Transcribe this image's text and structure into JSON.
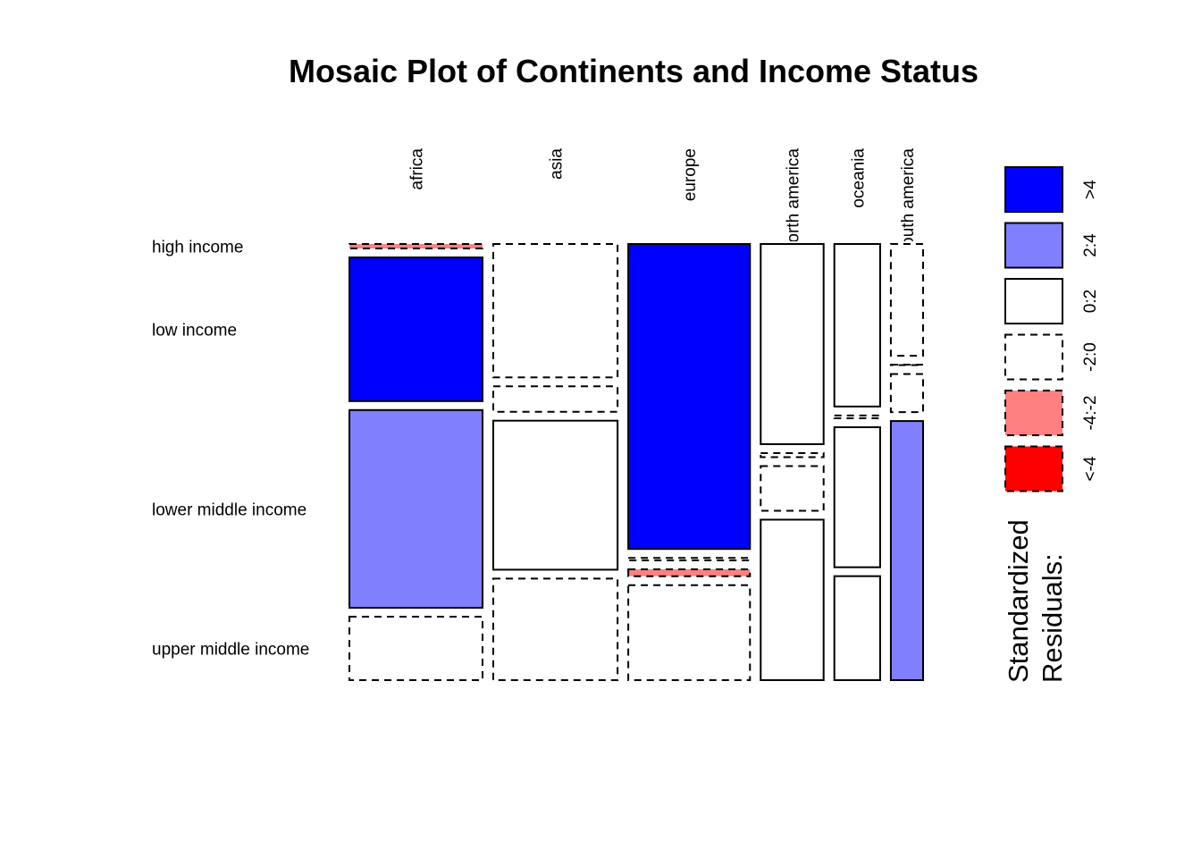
{
  "chart_data": {
    "type": "mosaic",
    "title": "Mosaic Plot of Continents and Income Status",
    "columns": [
      "africa",
      "asia",
      "europe",
      "north america",
      "oceania",
      "south america"
    ],
    "rows": [
      "high income",
      "low income",
      "lower middle income",
      "upper middle income"
    ],
    "proportions": [
      [
        0.011,
        0.351,
        0.483,
        0.155
      ],
      [
        0.326,
        0.062,
        0.364,
        0.248
      ],
      [
        0.745,
        0.006,
        0.017,
        0.232
      ],
      [
        0.489,
        0.01,
        0.109,
        0.392
      ],
      [
        0.397,
        0.007,
        0.342,
        0.254
      ],
      [
        0.273,
        0.001,
        0.093,
        0.633
      ]
    ],
    "column_widths": [
      0.256,
      0.239,
      0.234,
      0.121,
      0.088,
      0.062
    ],
    "residual_class": [
      [
        "neg2to4",
        "pos4",
        "pos2to4",
        "neg0to2"
      ],
      [
        "neg0to2",
        "neg0to2",
        "pos0to2",
        "neg0to2"
      ],
      [
        "pos4",
        "neg0to2",
        "neg2to4",
        "neg0to2"
      ],
      [
        "pos0to2",
        "neg0to2",
        "neg0to2",
        "pos0to2"
      ],
      [
        "pos0to2",
        "neg0to2",
        "pos0to2",
        "pos0to2"
      ],
      [
        "neg0to2",
        "neg0to2",
        "neg0to2",
        "pos2to4"
      ]
    ],
    "legend": {
      "title_line1": "Standardized",
      "title_line2": "Residuals:",
      "entries": [
        {
          "label": ">4",
          "color": "#0000FF",
          "dashed": false
        },
        {
          "label": "2:4",
          "color": "#8080FF",
          "dashed": false
        },
        {
          "label": "0:2",
          "color": "#FFFFFF",
          "dashed": false
        },
        {
          "label": "-2:0",
          "color": "#FFFFFF",
          "dashed": true
        },
        {
          "label": "-4:-2",
          "color": "#FF8080",
          "dashed": true
        },
        {
          "label": "<-4",
          "color": "#FF0000",
          "dashed": true
        }
      ]
    },
    "residual_colors": {
      "pos4": "#0000FF",
      "pos2to4": "#8080FF",
      "pos0to2": "#FFFFFF",
      "neg0to2": "#FFFFFF",
      "neg2to4": "#FF8080",
      "neg4": "#FF0000"
    }
  }
}
